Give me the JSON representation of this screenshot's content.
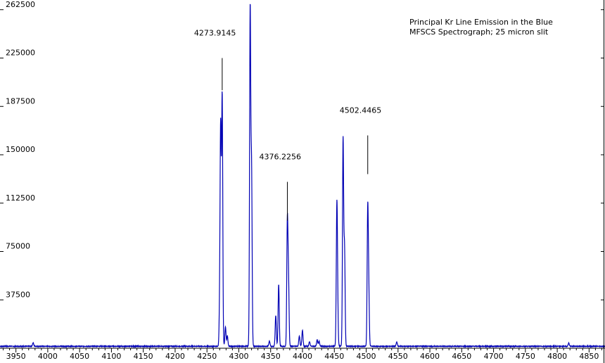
{
  "chart_data": {
    "type": "line",
    "title_lines": [
      "Principal Kr Line Emission in the Blue",
      "MFSCS Spectrograph; 25 micron slit"
    ],
    "xlabel": "",
    "ylabel": "",
    "xlim": [
      3925,
      4875
    ],
    "ylim": [
      0,
      270000
    ],
    "x_ticks": [
      3950,
      4000,
      4050,
      4100,
      4150,
      4200,
      4250,
      4300,
      4350,
      4400,
      4450,
      4500,
      4550,
      4600,
      4650,
      4700,
      4750,
      4800,
      4850
    ],
    "y_ticks": [
      37500,
      75000,
      112500,
      150000,
      187500,
      225000,
      262500
    ],
    "baseline": 1500,
    "peaks": [
      {
        "x": 3977,
        "y": 2800
      },
      {
        "x": 4270,
        "y": 28000
      },
      {
        "x": 4271.5,
        "y": 165000
      },
      {
        "x": 4273.9,
        "y": 193000
      },
      {
        "x": 4279,
        "y": 15000
      },
      {
        "x": 4282,
        "y": 8000
      },
      {
        "x": 4317.8,
        "y": 260000
      },
      {
        "x": 4320,
        "y": 135000
      },
      {
        "x": 4348,
        "y": 4000
      },
      {
        "x": 4358,
        "y": 24000
      },
      {
        "x": 4362.6,
        "y": 48000
      },
      {
        "x": 4376.2,
        "y": 95000
      },
      {
        "x": 4378,
        "y": 50000
      },
      {
        "x": 4395,
        "y": 8000
      },
      {
        "x": 4399.9,
        "y": 12500
      },
      {
        "x": 4411,
        "y": 3500
      },
      {
        "x": 4423,
        "y": 5000
      },
      {
        "x": 4426,
        "y": 4000
      },
      {
        "x": 4453.9,
        "y": 98000
      },
      {
        "x": 4455,
        "y": 30000
      },
      {
        "x": 4463.7,
        "y": 160000
      },
      {
        "x": 4466,
        "y": 75000
      },
      {
        "x": 4502.4,
        "y": 103000
      },
      {
        "x": 4504,
        "y": 40000
      },
      {
        "x": 4548,
        "y": 3500
      },
      {
        "x": 4818,
        "y": 2500
      }
    ],
    "annotations": [
      {
        "label": "4273.9145",
        "x": 4273.9145,
        "y_top": 225000,
        "y_bottom": 200000
      },
      {
        "label": "4376.2256",
        "x": 4376.2256,
        "y_top": 129000,
        "y_bottom": 99000
      },
      {
        "label": "4502.4465",
        "x": 4502.4465,
        "y_top": 165000,
        "y_bottom": 135000
      }
    ],
    "series_color": "#0000b4",
    "grid": false,
    "legend": "none"
  }
}
